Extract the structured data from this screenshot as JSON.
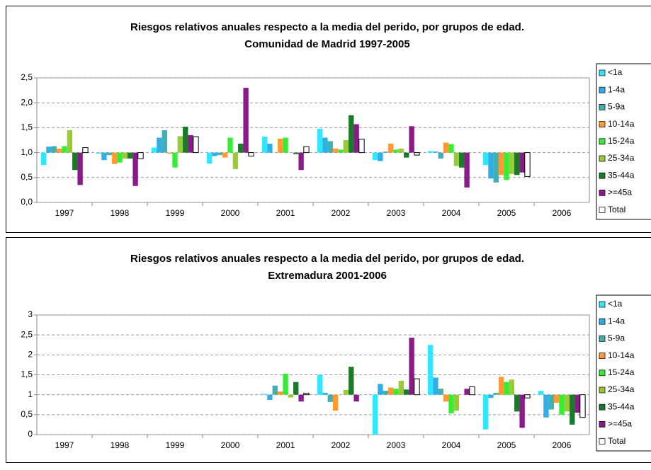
{
  "chart_data": [
    {
      "type": "bar",
      "title": "Riesgos relativos anuales respecto a la media del perido, por grupos de edad.",
      "subtitle": "Comunidad de Madrid 1997-2005",
      "categories": [
        "1997",
        "1998",
        "1999",
        "2000",
        "2001",
        "2002",
        "2003",
        "2004",
        "2005",
        "2006"
      ],
      "base": 1,
      "ylim": [
        0,
        2.5
      ],
      "yticks": [
        {
          "value": 0,
          "label": "0,0"
        },
        {
          "value": 0.5,
          "label": "0,5"
        },
        {
          "value": 1,
          "label": "1,0"
        },
        {
          "value": 1.5,
          "label": "1,5"
        },
        {
          "value": 2,
          "label": "2,0"
        },
        {
          "value": 2.5,
          "label": "2,5"
        }
      ],
      "grid": true,
      "legend": "right",
      "series": [
        {
          "name": "<1a",
          "color": "#33e6ff",
          "values": [
            0.75,
            0.98,
            1.1,
            0.78,
            1.32,
            1.48,
            0.85,
            1.03,
            0.75,
            null
          ]
        },
        {
          "name": "1-4a",
          "color": "#30aee8",
          "values": [
            1.12,
            0.85,
            1.3,
            0.93,
            1.18,
            1.3,
            0.83,
            1.02,
            0.48,
            null
          ]
        },
        {
          "name": "5-9a",
          "color": "#40b0b0",
          "values": [
            1.13,
            0.95,
            1.45,
            0.95,
            1.0,
            1.23,
            1.02,
            0.88,
            0.4,
            null
          ]
        },
        {
          "name": "10-14a",
          "color": "#ff9933",
          "values": [
            1.08,
            0.77,
            0.98,
            0.9,
            1.28,
            1.08,
            1.18,
            1.2,
            0.55,
            null
          ]
        },
        {
          "name": "15-24a",
          "color": "#33ee33",
          "values": [
            1.13,
            0.8,
            0.7,
            1.3,
            1.3,
            1.06,
            1.06,
            1.17,
            0.45,
            null
          ]
        },
        {
          "name": "25-34a",
          "color": "#99cc33",
          "values": [
            1.45,
            0.88,
            1.33,
            0.67,
            1.0,
            1.25,
            1.08,
            0.73,
            0.57,
            null
          ]
        },
        {
          "name": "35-44a",
          "color": "#1a7a2a",
          "values": [
            0.65,
            0.88,
            1.52,
            1.18,
            0.97,
            1.75,
            0.9,
            0.7,
            0.55,
            null
          ]
        },
        {
          "name": ">=45a",
          "color": "#8a1a8a",
          "values": [
            0.35,
            0.33,
            1.35,
            2.3,
            0.65,
            1.57,
            1.53,
            0.3,
            0.6,
            null
          ]
        },
        {
          "name": "Total",
          "color": "#ffffff",
          "values": [
            1.1,
            0.88,
            1.32,
            0.93,
            1.12,
            1.27,
            0.95,
            1.0,
            0.52,
            null
          ]
        }
      ]
    },
    {
      "type": "bar",
      "title": "Riesgos relativos anuales respecto a la media del perido, por grupos de edad.",
      "subtitle": "Extremadura 2001-2006",
      "categories": [
        "1997",
        "1998",
        "1999",
        "2000",
        "2001",
        "2002",
        "2003",
        "2004",
        "2005",
        "2006"
      ],
      "base": 1,
      "ylim": [
        0,
        3
      ],
      "yticks": [
        0,
        {
          "value": 0.5,
          "label": "0,5"
        },
        1,
        {
          "value": 1.5,
          "label": "1,5"
        },
        2,
        {
          "value": 2.5,
          "label": "2,5"
        },
        3
      ],
      "grid": true,
      "legend": "right",
      "series": [
        {
          "name": "<1a",
          "color": "#33e6ff",
          "values": [
            null,
            null,
            null,
            null,
            1.02,
            1.5,
            0.0,
            2.25,
            0.13,
            1.1
          ]
        },
        {
          "name": "1-4a",
          "color": "#30aee8",
          "values": [
            null,
            null,
            null,
            null,
            0.87,
            1.05,
            1.27,
            1.43,
            0.92,
            0.43
          ]
        },
        {
          "name": "5-9a",
          "color": "#40b0b0",
          "values": [
            null,
            null,
            null,
            null,
            1.23,
            0.82,
            1.1,
            1.15,
            1.05,
            0.63
          ]
        },
        {
          "name": "10-14a",
          "color": "#ff9933",
          "values": [
            null,
            null,
            null,
            null,
            1.08,
            0.6,
            1.18,
            0.83,
            1.45,
            0.8
          ]
        },
        {
          "name": "15-24a",
          "color": "#33ee33",
          "values": [
            null,
            null,
            null,
            null,
            1.53,
            1.0,
            1.15,
            0.53,
            1.32,
            0.5
          ]
        },
        {
          "name": "25-34a",
          "color": "#99cc33",
          "values": [
            null,
            null,
            null,
            null,
            0.93,
            1.12,
            1.35,
            0.6,
            1.38,
            0.58
          ]
        },
        {
          "name": "35-44a",
          "color": "#1a7a2a",
          "values": [
            null,
            null,
            null,
            null,
            1.32,
            1.7,
            1.13,
            1.0,
            0.58,
            0.25
          ]
        },
        {
          "name": ">=45a",
          "color": "#8a1a8a",
          "values": [
            null,
            null,
            null,
            null,
            0.83,
            0.83,
            2.43,
            1.15,
            0.17,
            0.55
          ]
        },
        {
          "name": "Total",
          "color": "#ffffff",
          "values": [
            null,
            null,
            null,
            null,
            1.04,
            1.0,
            1.4,
            1.2,
            0.92,
            0.43
          ]
        }
      ]
    }
  ]
}
